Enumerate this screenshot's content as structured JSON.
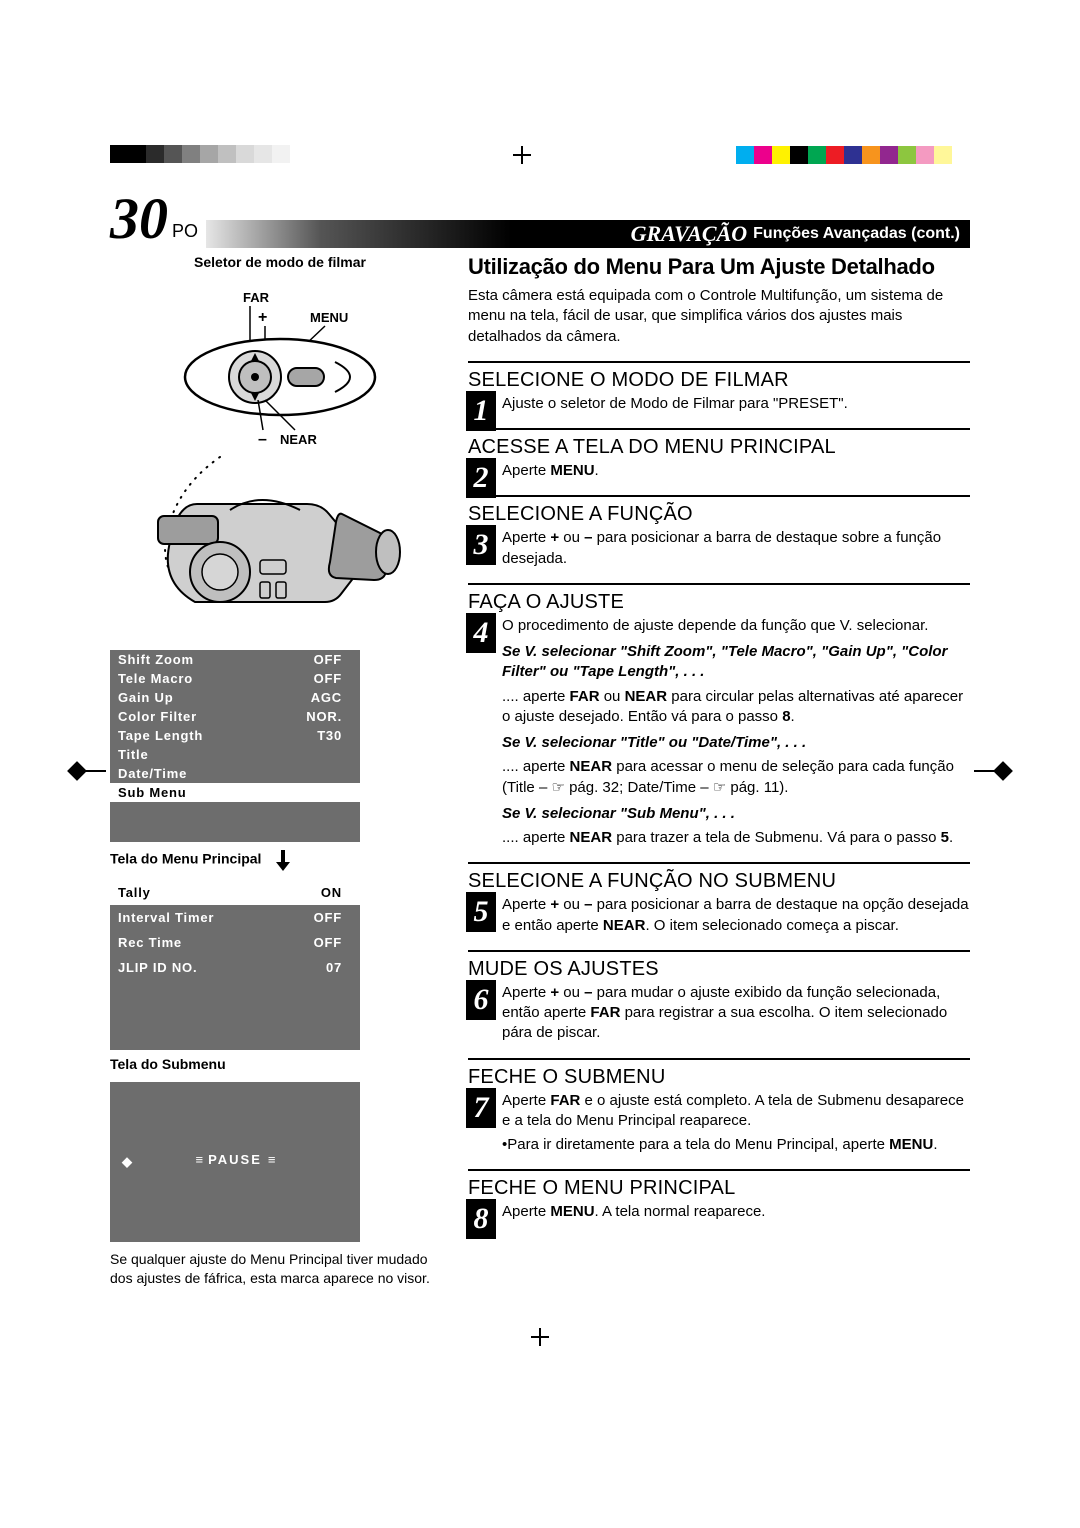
{
  "regmarks": {
    "grays": [
      "#000000",
      "#000000",
      "#2b2b2b",
      "#555555",
      "#808080",
      "#a6a6a6",
      "#c0c0c0",
      "#d9d9d9",
      "#e6e6e6",
      "#f2f2f2",
      "#ffffff"
    ],
    "colors": [
      "#00aeef",
      "#ec008c",
      "#fff200",
      "#000000",
      "#00a651",
      "#ed1c24",
      "#2e3192",
      "#f7941d",
      "#92278f",
      "#8dc63f",
      "#f49ac1",
      "#fff799",
      "#ffffff"
    ]
  },
  "header": {
    "page_no": "30",
    "po": "PO",
    "category": "GRAVAÇÃO",
    "subtitle": "Funções Avançadas (cont.)"
  },
  "left": {
    "selector_label": "Seletor de modo de filmar",
    "far": "FAR",
    "plus": "+",
    "menu": "MENU",
    "near": "NEAR",
    "minus": "–",
    "main_menu": {
      "caption": "Tela do Menu Principal",
      "rows": [
        {
          "label": "Shift Zoom",
          "value": "OFF"
        },
        {
          "label": "Tele Macro",
          "value": "OFF"
        },
        {
          "label": "Gain Up",
          "value": "AGC"
        },
        {
          "label": "Color Filter",
          "value": "NOR."
        },
        {
          "label": "Tape Length",
          "value": "T30"
        },
        {
          "label": "Title",
          "value": ""
        },
        {
          "label": "Date/Time",
          "value": ""
        },
        {
          "label": "Sub Menu",
          "value": "",
          "hl": true
        }
      ]
    },
    "sub_menu": {
      "caption": "Tela do Submenu",
      "rows": [
        {
          "label": "Tally",
          "value": "ON",
          "hl": true
        },
        {
          "label": "Interval Timer",
          "value": "OFF"
        },
        {
          "label": "Rec Time",
          "value": "OFF"
        },
        {
          "label": "JLIP ID NO.",
          "value": "07"
        }
      ]
    },
    "pause_label": "PAUSE",
    "footnote": "Se qualquer ajuste do Menu Principal tiver mudado dos ajustes de fáfrica, esta marca aparece no visor."
  },
  "right": {
    "title": "Utilização do Menu Para Um Ajuste Detalhado",
    "intro": "Esta câmera está equipada com o Controle Multifunção, um sistema de menu na tela, fácil de usar, que simplifica vários dos ajustes mais detalhados da câmera.",
    "steps": [
      {
        "n": "1",
        "title": "SELECIONE O MODO DE FILMAR",
        "body": "Ajuste o seletor de Modo de Filmar para \"PRESET\"."
      },
      {
        "n": "2",
        "title": "ACESSE A TELA DO MENU PRINCIPAL",
        "body": "Aperte <b>MENU</b>."
      },
      {
        "n": "3",
        "title": "SELECIONE A FUNÇÃO",
        "body": "Aperte <b>+</b> ou <b>–</b> para posicionar a barra de destaque sobre a função desejada."
      },
      {
        "n": "4",
        "title": "FAÇA O AJUSTE",
        "body": "O procedimento de ajuste depende da função que V. selecionar.",
        "conds": [
          {
            "t": "Se V. selecionar \"Shift Zoom\", \"Tele Macro\", \"Gain Up\", \"Color Filter\" ou \"Tape Length\", . . .",
            "b": ".... aperte <b>FAR</b> ou <b>NEAR</b> para circular pelas alternativas até aparecer o ajuste desejado. Então vá para o passo <b>8</b>."
          },
          {
            "t": "Se V. selecionar \"Title\" ou \"Date/Time\", . . .",
            "b": ".... aperte <b>NEAR</b> para acessar o menu de seleção para cada função (Title – ☞ pág. 32; Date/Time – ☞ pág. 11)."
          },
          {
            "t": "Se V. selecionar \"Sub Menu\", . . .",
            "b": ".... aperte <b>NEAR</b> para trazer a tela de Submenu. Vá para o passo <b>5</b>."
          }
        ]
      },
      {
        "n": "5",
        "title": "SELECIONE A FUNÇÃO NO SUBMENU",
        "body": "Aperte <b>+</b> ou <b>–</b> para posicionar a barra de destaque na opção desejada e então aperte <b>NEAR</b>. O item selecionado começa a piscar."
      },
      {
        "n": "6",
        "title": "MUDE OS AJUSTES",
        "body": "Aperte <b>+</b> ou <b>–</b> para mudar o ajuste exibido da função selecionada, então aperte <b>FAR</b> para registrar a sua escolha. O item selecionado pára de piscar."
      },
      {
        "n": "7",
        "title": "FECHE O SUBMENU",
        "body": "Aperte <b>FAR</b> e o ajuste está completo. A tela de Submenu desaparece e a tela do Menu Principal reaparece.",
        "bullet": "•Para ir diretamente para a tela do Menu Principal, aperte <b>MENU</b>."
      },
      {
        "n": "8",
        "title": "FECHE O MENU PRINCIPAL",
        "body": "Aperte <b>MENU</b>. A tela normal reaparece."
      }
    ]
  }
}
